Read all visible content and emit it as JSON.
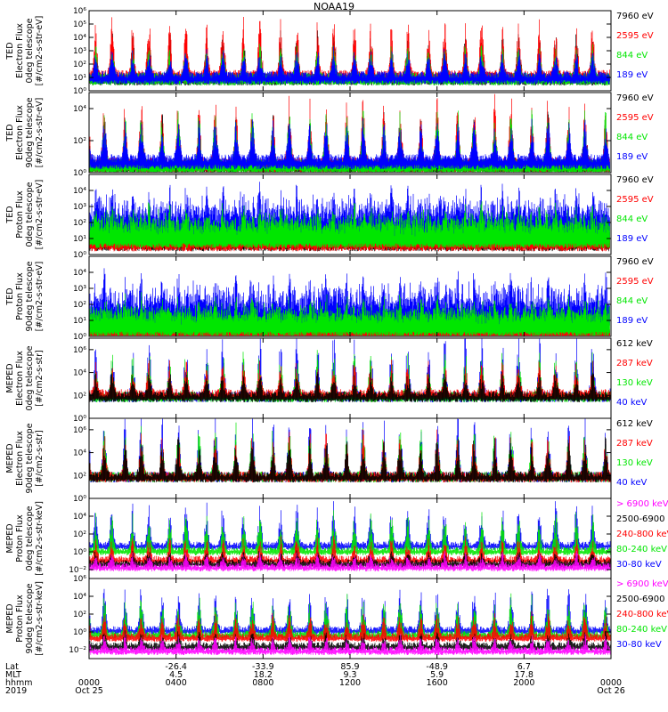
{
  "title": "NOAA19",
  "colors": {
    "black": "#000000",
    "red": "#ff0000",
    "green": "#00e600",
    "blue": "#0000ff",
    "magenta": "#ff00ff"
  },
  "chart_data": [
    {
      "type": "line",
      "ylabel_lines": [
        "TED",
        "Electron Flux",
        "0deg telescope",
        "[#/cm2-s-str-eV]"
      ],
      "scale": "log",
      "ylim_exp": [
        0,
        6
      ],
      "tick_exps": [
        0,
        1,
        2,
        3,
        4,
        5,
        6
      ],
      "tick_labels": [
        "10⁰",
        "10¹",
        "10²",
        "10³",
        "10⁴",
        "10⁵",
        "10⁶"
      ],
      "series": [
        {
          "name": "7960 eV",
          "color": "#000000",
          "floor_exp": 1.0,
          "amp_exp": 2.8
        },
        {
          "name": "2595 eV",
          "color": "#ff0000",
          "floor_exp": 1.2,
          "amp_exp": 3.6
        },
        {
          "name": "844 eV",
          "color": "#00e600",
          "floor_exp": 1.0,
          "amp_exp": 2.0
        },
        {
          "name": "189 eV",
          "color": "#0000ff",
          "floor_exp": 1.1,
          "amp_exp": 1.6
        }
      ]
    },
    {
      "type": "line",
      "ylabel_lines": [
        "TED",
        "Electron Flux",
        "90deg telescope",
        "[#/cm2-s-str-eV]"
      ],
      "scale": "log",
      "ylim_exp": [
        0,
        5
      ],
      "tick_exps": [
        0,
        2,
        4
      ],
      "tick_labels": [
        "10⁰",
        "10²",
        "10⁴"
      ],
      "series": [
        {
          "name": "7960 eV",
          "color": "#000000",
          "floor_exp": 0.5,
          "amp_exp": 2.6
        },
        {
          "name": "2595 eV",
          "color": "#ff0000",
          "floor_exp": 0.6,
          "amp_exp": 3.4
        },
        {
          "name": "844 eV",
          "color": "#00e600",
          "floor_exp": 0.5,
          "amp_exp": 2.8
        },
        {
          "name": "189 eV",
          "color": "#0000ff",
          "floor_exp": 0.8,
          "amp_exp": 2.0
        }
      ]
    },
    {
      "type": "line",
      "ylabel_lines": [
        "TED",
        "Proton Flux",
        "0deg telescope",
        "[#/cm2-s-str-eV]"
      ],
      "scale": "log",
      "ylim_exp": [
        0,
        5
      ],
      "tick_exps": [
        0,
        1,
        2,
        3,
        4
      ],
      "tick_labels": [
        "10⁰",
        "10¹",
        "10²",
        "10³",
        "10⁴"
      ],
      "series": [
        {
          "name": "7960 eV",
          "color": "#000000",
          "floor_exp": 0.8,
          "amp_exp": 0.6
        },
        {
          "name": "2595 eV",
          "color": "#ff0000",
          "floor_exp": 0.8,
          "amp_exp": 0.8
        },
        {
          "name": "189 eV",
          "color": "#0000ff",
          "floor_exp": 1.5,
          "amp_exp": 2.4
        },
        {
          "name": "844 eV",
          "color": "#00e600",
          "floor_exp": 1.0,
          "amp_exp": 1.8
        }
      ]
    },
    {
      "type": "line",
      "ylabel_lines": [
        "TED",
        "Proton Flux",
        "90deg telescope",
        "[#/cm2-s-str-eV]"
      ],
      "scale": "log",
      "ylim_exp": [
        0,
        5
      ],
      "tick_exps": [
        0,
        1,
        2,
        3,
        4
      ],
      "tick_labels": [
        "10⁰",
        "10¹",
        "10²",
        "10³",
        "10⁴"
      ],
      "series": [
        {
          "name": "7960 eV",
          "color": "#000000",
          "floor_exp": 0.2,
          "amp_exp": 0.4
        },
        {
          "name": "2595 eV",
          "color": "#ff0000",
          "floor_exp": 0.3,
          "amp_exp": 0.5
        },
        {
          "name": "189 eV",
          "color": "#0000ff",
          "floor_exp": 1.0,
          "amp_exp": 2.6
        },
        {
          "name": "844 eV",
          "color": "#00e600",
          "floor_exp": 0.6,
          "amp_exp": 1.6
        }
      ]
    },
    {
      "type": "line",
      "ylabel_lines": [
        "MEPED",
        "Electron Flux",
        "0deg telescope",
        "[#/cm2-s-str]"
      ],
      "scale": "log",
      "ylim_exp": [
        0,
        7
      ],
      "tick_exps": [
        0,
        2,
        4,
        6
      ],
      "tick_labels": [
        "10⁰",
        "10²",
        "10⁴",
        "10⁶"
      ],
      "series": [
        {
          "name": "40 keV",
          "color": "#0000ff",
          "floor_exp": 2.0,
          "amp_exp": 4.6
        },
        {
          "name": "130 keV",
          "color": "#00e600",
          "floor_exp": 2.0,
          "amp_exp": 3.4
        },
        {
          "name": "287 keV",
          "color": "#ff0000",
          "floor_exp": 2.2,
          "amp_exp": 2.4
        },
        {
          "name": "612 keV",
          "color": "#000000",
          "floor_exp": 2.0,
          "amp_exp": 1.8
        }
      ]
    },
    {
      "type": "line",
      "ylabel_lines": [
        "MEPED",
        "Electron Flux",
        "90deg telescope",
        "[#/cm2-s-str]"
      ],
      "scale": "log",
      "ylim_exp": [
        0,
        7
      ],
      "tick_exps": [
        0,
        2,
        4,
        6
      ],
      "tick_labels": [
        "10⁰",
        "10²",
        "10⁴",
        "10⁶"
      ],
      "series": [
        {
          "name": "40 keV",
          "color": "#0000ff",
          "floor_exp": 2.0,
          "amp_exp": 4.4
        },
        {
          "name": "130 keV",
          "color": "#00e600",
          "floor_exp": 2.0,
          "amp_exp": 3.8
        },
        {
          "name": "287 keV",
          "color": "#ff0000",
          "floor_exp": 2.0,
          "amp_exp": 3.2
        },
        {
          "name": "612 keV",
          "color": "#000000",
          "floor_exp": 2.0,
          "amp_exp": 2.8
        }
      ]
    },
    {
      "type": "line",
      "ylabel_lines": [
        "MEPED",
        "Proton Flux",
        "0deg telescope",
        "[#/cm2-s-str-keV]"
      ],
      "scale": "log",
      "ylim_exp": [
        -3,
        6
      ],
      "tick_exps": [
        -2,
        0,
        2,
        4
      ],
      "tick_labels": [
        "10⁻²",
        "10⁰",
        "10²",
        "10⁴"
      ],
      "series": [
        {
          "name": "30-80 keV",
          "color": "#0000ff",
          "floor_exp": 0.8,
          "amp_exp": 4.0
        },
        {
          "name": "80-240 keV",
          "color": "#00e600",
          "floor_exp": 0.2,
          "amp_exp": 3.6
        },
        {
          "name": "240-800 keV",
          "color": "#ff0000",
          "floor_exp": -0.8,
          "amp_exp": 2.0
        },
        {
          "name": "2500-6900",
          "color": "#000000",
          "floor_exp": -1.2,
          "amp_exp": 1.0
        },
        {
          "name": "> 6900 keV",
          "color": "#ff00ff",
          "floor_exp": -1.6,
          "amp_exp": 1.2
        }
      ]
    },
    {
      "type": "line",
      "ylabel_lines": [
        "MEPED",
        "Proton Flux",
        "90deg telescope",
        "[#/cm2-s-str-keV]"
      ],
      "scale": "log",
      "ylim_exp": [
        -3,
        6
      ],
      "tick_exps": [
        -2,
        0,
        2,
        4,
        6
      ],
      "tick_labels": [
        "10⁻²",
        "10⁰",
        "10²",
        "10⁴",
        "10⁶"
      ],
      "series": [
        {
          "name": "30-80 keV",
          "color": "#0000ff",
          "floor_exp": 0.3,
          "amp_exp": 4.0
        },
        {
          "name": "80-240 keV",
          "color": "#00e600",
          "floor_exp": -0.2,
          "amp_exp": 3.8
        },
        {
          "name": "240-800 keV",
          "color": "#ff0000",
          "floor_exp": -0.5,
          "amp_exp": 2.2
        },
        {
          "name": "2500-6900",
          "color": "#000000",
          "floor_exp": -1.5,
          "amp_exp": 1.2
        },
        {
          "name": "> 6900 keV",
          "color": "#ff00ff",
          "floor_exp": -2.0,
          "amp_exp": 1.4
        }
      ]
    }
  ],
  "x_axis": {
    "range_hours": [
      0,
      24
    ],
    "row_labels": [
      "Lat",
      "MLT",
      "hhmm",
      "2019"
    ],
    "ticks": [
      {
        "hour": 0,
        "lat": "",
        "mlt": "",
        "hhmm": "0000",
        "date": "Oct 25"
      },
      {
        "hour": 4,
        "lat": "-26.4",
        "mlt": "4.5",
        "hhmm": "0400",
        "date": ""
      },
      {
        "hour": 8,
        "lat": "-33.9",
        "mlt": "18.2",
        "hhmm": "0800",
        "date": ""
      },
      {
        "hour": 12,
        "lat": "85.9",
        "mlt": "9.3",
        "hhmm": "1200",
        "date": ""
      },
      {
        "hour": 16,
        "lat": "-48.9",
        "mlt": "5.9",
        "hhmm": "1600",
        "date": ""
      },
      {
        "hour": 20,
        "lat": "6.7",
        "mlt": "17.8",
        "hhmm": "2000",
        "date": ""
      },
      {
        "hour": 24,
        "lat": "",
        "mlt": "",
        "hhmm": "0000",
        "date": "Oct 26"
      }
    ]
  }
}
